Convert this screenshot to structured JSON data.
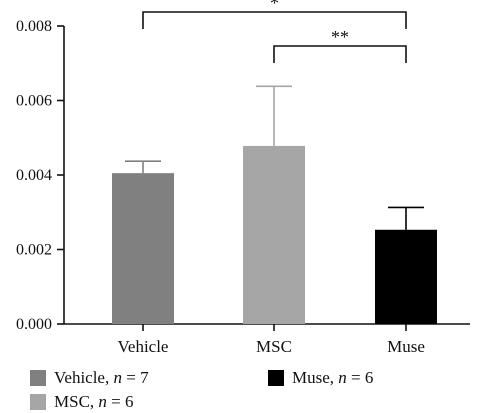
{
  "chart_data": {
    "type": "bar",
    "categories": [
      "Vehicle",
      "MSC",
      "Muse"
    ],
    "values": [
      0.00405,
      0.00478,
      0.00253
    ],
    "errors": [
      0.00032,
      0.0016,
      0.0006
    ],
    "colors": [
      "#808080",
      "#a6a6a6",
      "#000000"
    ],
    "ylim": [
      0,
      0.008
    ],
    "yticks": [
      "0.000",
      "0.002",
      "0.004",
      "0.006",
      "0.008"
    ],
    "ytick_values": [
      0,
      0.002,
      0.004,
      0.006,
      0.008
    ],
    "xlabel": "",
    "ylabel": "",
    "title": "",
    "significance": [
      {
        "from": "Vehicle",
        "to": "Muse",
        "label": "*"
      },
      {
        "from": "MSC",
        "to": "Muse",
        "label": "**"
      }
    ],
    "legend": [
      {
        "name": "Vehicle",
        "n_label": "n",
        "n_value": " = 7",
        "color": "#808080"
      },
      {
        "name": "MSC",
        "n_label": "n",
        "n_value": " = 6",
        "color": "#a6a6a6"
      },
      {
        "name": "Muse",
        "n_label": "n",
        "n_value": " = 6",
        "color": "#000000"
      }
    ]
  }
}
